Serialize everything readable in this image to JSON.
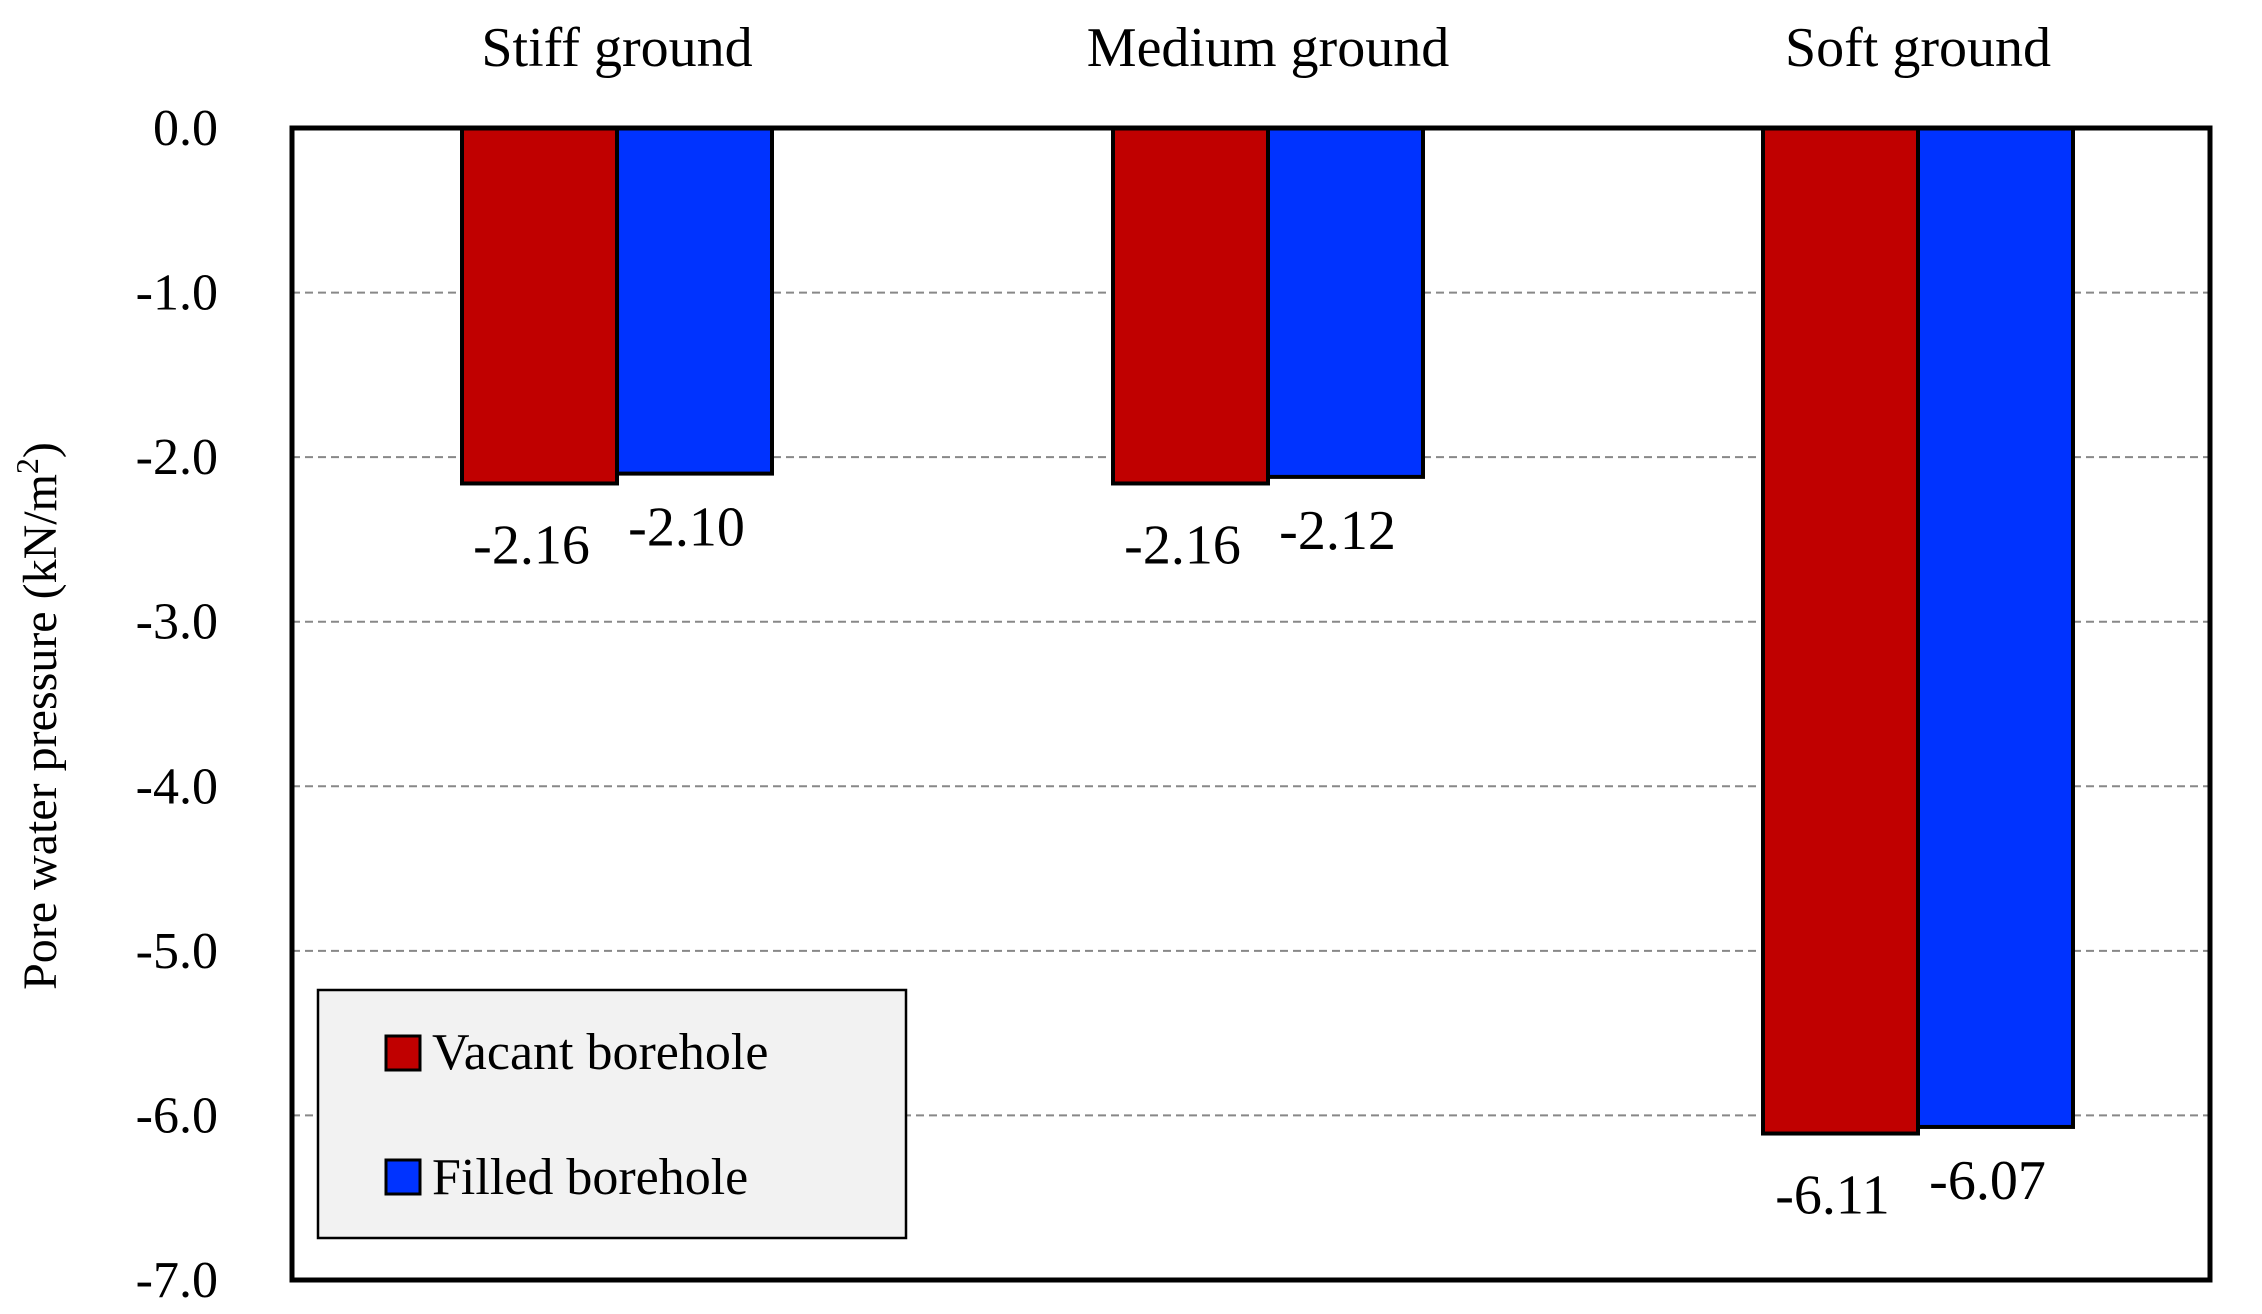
{
  "chart_data": {
    "type": "bar",
    "categories": [
      "Stiff ground",
      "Medium ground",
      "Soft ground"
    ],
    "series": [
      {
        "name": "Vacant borehole",
        "values": [
          -2.16,
          -2.16,
          -6.11
        ],
        "labels": [
          "-2.16",
          "-2.16",
          "-6.11"
        ]
      },
      {
        "name": "Filled borehole",
        "values": [
          -2.1,
          -2.12,
          -6.07
        ],
        "labels": [
          "-2.10",
          "-2.12",
          "-6.07"
        ]
      }
    ],
    "ylabel_main": "Pore water pressure (kN/m",
    "ylabel_sup": "2",
    "ylabel_close": ")",
    "ylim": [
      -7.0,
      0.0
    ],
    "yticks": [
      0.0,
      -1.0,
      -2.0,
      -3.0,
      -4.0,
      -5.0,
      -6.0,
      -7.0
    ],
    "ytick_labels": [
      "0.0",
      "-1.0",
      "-2.0",
      "-3.0",
      "-4.0",
      "-5.0",
      "-6.0",
      "-7.0"
    ],
    "category_axis_position": "top",
    "grid": "horizontal-dashed",
    "legend_position": "bottom-left",
    "colors": [
      "#c00000",
      "#0033ff"
    ]
  }
}
